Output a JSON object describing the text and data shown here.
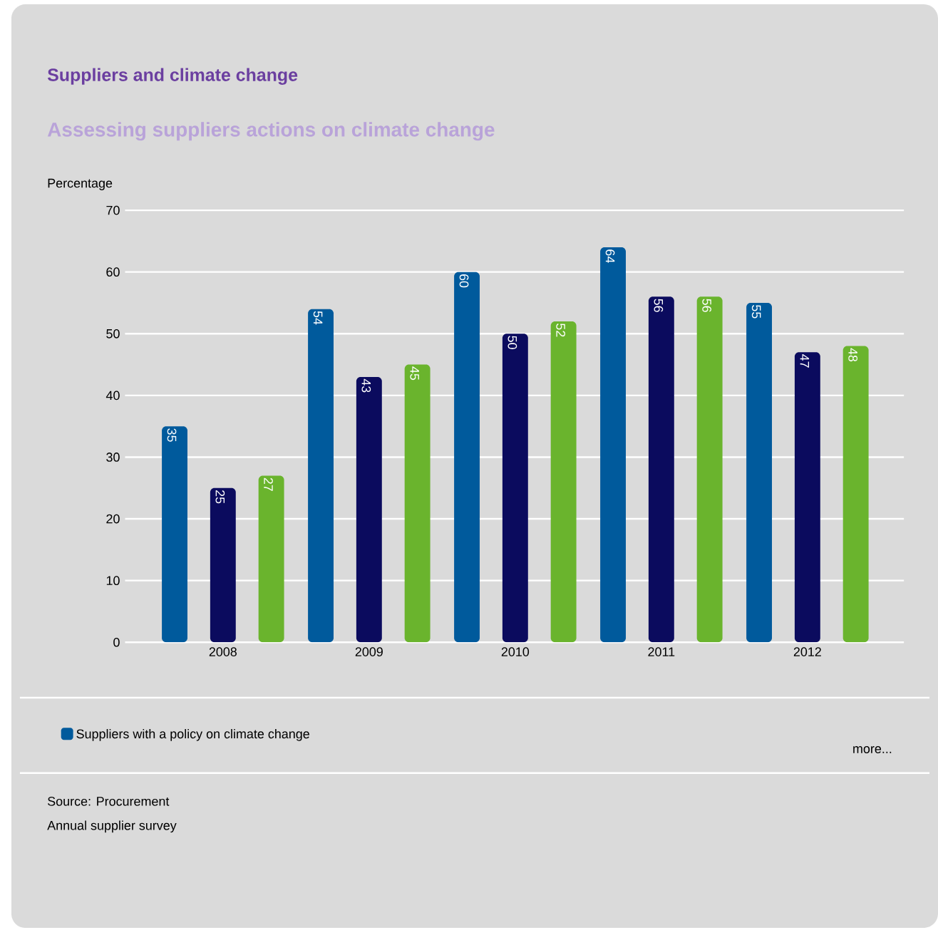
{
  "chart_data": {
    "type": "bar",
    "title": "Suppliers and climate change",
    "subtitle": "Assessing suppliers actions on climate change",
    "ylabel": "Percentage",
    "categories": [
      "2008",
      "2009",
      "2010",
      "2011",
      "2012"
    ],
    "series": [
      {
        "name": "Suppliers with a policy on climate change",
        "color": "#005a9c",
        "values": [
          35,
          54,
          60,
          64,
          55
        ]
      },
      {
        "color": "#0b0b5e",
        "values": [
          25,
          43,
          50,
          56,
          47
        ]
      },
      {
        "color": "#6ab42d",
        "values": [
          27,
          45,
          52,
          56,
          48
        ]
      }
    ],
    "ylim": [
      0,
      70
    ],
    "yticks": [
      0,
      10,
      20,
      30,
      40,
      50,
      60,
      70
    ],
    "grid": "y",
    "legend": "bottom",
    "data_labels": true,
    "annotations": [
      "more...",
      "Source: Procurement",
      "Annual supplier survey"
    ]
  }
}
